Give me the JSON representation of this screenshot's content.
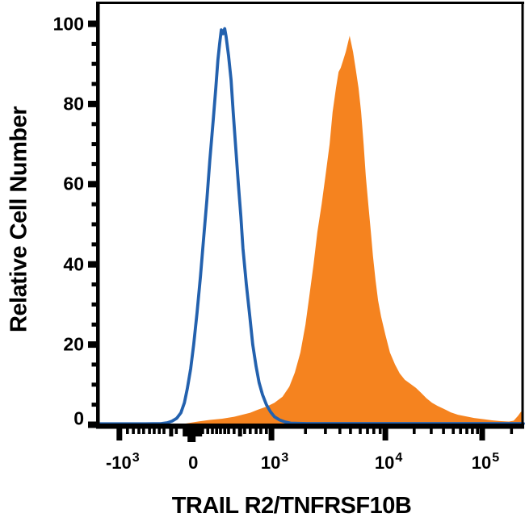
{
  "page": {
    "background": "#FFFFFF"
  },
  "axis_titles": {
    "x": "TRAIL R2/TNFRSF10B",
    "y": "Relative Cell Number"
  },
  "colors": {
    "blue_line": "#2361AE",
    "orange_fill": "#F5831F",
    "axis": "#000000",
    "background": "#FFFFFF"
  },
  "chart_data": {
    "type": "area",
    "subtype": "flow-cytometry-histogram-overlay",
    "title": "",
    "xlabel": "TRAIL R2/TNFRSF10B",
    "ylabel": "Relative Cell Number",
    "x_scale": "biexponential-log",
    "grid": "off",
    "legend": "none",
    "ylim": [
      0,
      100
    ],
    "y_axis": {
      "major_ticks": [
        0,
        20,
        40,
        60,
        80,
        100
      ],
      "minor_step": 5
    },
    "x_axis": {
      "major_ticks": [
        {
          "base": "-10",
          "exp": "3",
          "pct": 4.9,
          "wide": false
        },
        {
          "base": "0",
          "exp": "",
          "pct": 22.1,
          "wide": true
        },
        {
          "base": "10",
          "exp": "3",
          "pct": 40.7,
          "wide": false
        },
        {
          "base": "10",
          "exp": "4",
          "pct": 67.5,
          "wide": false
        },
        {
          "base": "10",
          "exp": "5",
          "pct": 90.3,
          "wide": false
        }
      ],
      "medium_ticks_pct": [
        17.1,
        33.3
      ],
      "minor_ticks_pct": [
        6.8,
        8.2,
        9.5,
        10.6,
        12.0,
        13.1,
        14.3,
        15.4,
        18.3,
        24.5,
        25.7,
        26.8,
        27.8,
        28.7,
        29.7,
        30.6,
        31.9,
        34.4,
        35.7,
        37.1,
        38.2,
        39.5,
        48.7,
        53.4,
        56.8,
        59.3,
        61.6,
        63.3,
        64.8,
        66.3,
        74.3,
        78.3,
        81.2,
        83.5,
        85.2,
        86.7,
        88.0,
        89.2,
        97.2
      ]
    },
    "series": [
      {
        "name": "orange-filled-histogram",
        "style": "fill",
        "color": "#F5831F",
        "points": [
          [
            20.5,
            0.3
          ],
          [
            23.4,
            0.8
          ],
          [
            26.2,
            1.2
          ],
          [
            29.1,
            1.5
          ],
          [
            31.9,
            2.0
          ],
          [
            33.8,
            2.5
          ],
          [
            35.7,
            3.0
          ],
          [
            37.6,
            3.8
          ],
          [
            39.5,
            4.5
          ],
          [
            41.4,
            5.5
          ],
          [
            43.3,
            7.0
          ],
          [
            44.9,
            9.5
          ],
          [
            46.2,
            13.0
          ],
          [
            47.5,
            18.0
          ],
          [
            48.7,
            25.0
          ],
          [
            49.6,
            32.0
          ],
          [
            50.6,
            40.0
          ],
          [
            51.5,
            48.0
          ],
          [
            52.5,
            55.0
          ],
          [
            53.4,
            62.0
          ],
          [
            54.4,
            70.0
          ],
          [
            55.1,
            78.0
          ],
          [
            55.9,
            84.0
          ],
          [
            56.5,
            88.0
          ],
          [
            57.0,
            89.0
          ],
          [
            57.6,
            91.0
          ],
          [
            58.2,
            93.0
          ],
          [
            59.1,
            97.0
          ],
          [
            59.9,
            93.0
          ],
          [
            60.5,
            89.0
          ],
          [
            61.2,
            84.0
          ],
          [
            61.8,
            78.0
          ],
          [
            62.4,
            70.0
          ],
          [
            62.9,
            62.0
          ],
          [
            63.5,
            55.0
          ],
          [
            64.1,
            48.0
          ],
          [
            64.6,
            42.0
          ],
          [
            65.2,
            36.0
          ],
          [
            65.8,
            31.0
          ],
          [
            66.5,
            27.0
          ],
          [
            67.5,
            22.5
          ],
          [
            68.6,
            18.0
          ],
          [
            69.8,
            15.0
          ],
          [
            70.9,
            12.8
          ],
          [
            72.1,
            11.2
          ],
          [
            73.4,
            10.2
          ],
          [
            74.7,
            9.2
          ],
          [
            75.9,
            8.0
          ],
          [
            77.2,
            6.6
          ],
          [
            78.5,
            5.5
          ],
          [
            79.8,
            4.7
          ],
          [
            81.4,
            3.9
          ],
          [
            82.9,
            3.1
          ],
          [
            84.6,
            2.5
          ],
          [
            86.5,
            2.1
          ],
          [
            88.4,
            1.7
          ],
          [
            90.5,
            1.4
          ],
          [
            92.6,
            1.1
          ],
          [
            94.7,
            0.9
          ],
          [
            96.6,
            0.8
          ],
          [
            97.7,
            1.0
          ],
          [
            98.7,
            2.2
          ],
          [
            99.4,
            3.2
          ],
          [
            100.0,
            3.6
          ]
        ]
      },
      {
        "name": "blue-open-histogram",
        "style": "line",
        "color": "#2361AE",
        "points": [
          [
            0.4,
            0.25
          ],
          [
            11.0,
            0.25
          ],
          [
            14.8,
            0.3
          ],
          [
            16.2,
            0.5
          ],
          [
            17.3,
            0.9
          ],
          [
            18.4,
            1.6
          ],
          [
            19.4,
            3.0
          ],
          [
            20.2,
            5.5
          ],
          [
            20.9,
            9.0
          ],
          [
            21.7,
            14.0
          ],
          [
            22.4,
            20.0
          ],
          [
            23.2,
            28.0
          ],
          [
            24.0,
            37.0
          ],
          [
            24.7,
            46.0
          ],
          [
            25.5,
            56.0
          ],
          [
            26.2,
            66.0
          ],
          [
            27.0,
            76.0
          ],
          [
            27.6,
            84.0
          ],
          [
            28.1,
            91.0
          ],
          [
            28.5,
            95.0
          ],
          [
            28.9,
            98.5
          ],
          [
            29.3,
            97.5
          ],
          [
            29.7,
            98.8
          ],
          [
            30.0,
            97.0
          ],
          [
            30.6,
            92.0
          ],
          [
            31.2,
            86.0
          ],
          [
            31.7,
            78.0
          ],
          [
            32.3,
            69.0
          ],
          [
            32.9,
            60.0
          ],
          [
            33.5,
            52.0
          ],
          [
            34.0,
            44.0
          ],
          [
            34.8,
            35.0
          ],
          [
            35.6,
            27.0
          ],
          [
            36.3,
            20.0
          ],
          [
            37.1,
            14.5
          ],
          [
            37.8,
            10.5
          ],
          [
            38.6,
            7.5
          ],
          [
            39.5,
            5.0
          ],
          [
            40.5,
            3.2
          ],
          [
            41.4,
            2.0
          ],
          [
            42.6,
            1.2
          ],
          [
            43.9,
            0.7
          ],
          [
            45.2,
            0.4
          ],
          [
            49.0,
            0.3
          ],
          [
            100.0,
            0.3
          ]
        ]
      }
    ]
  }
}
